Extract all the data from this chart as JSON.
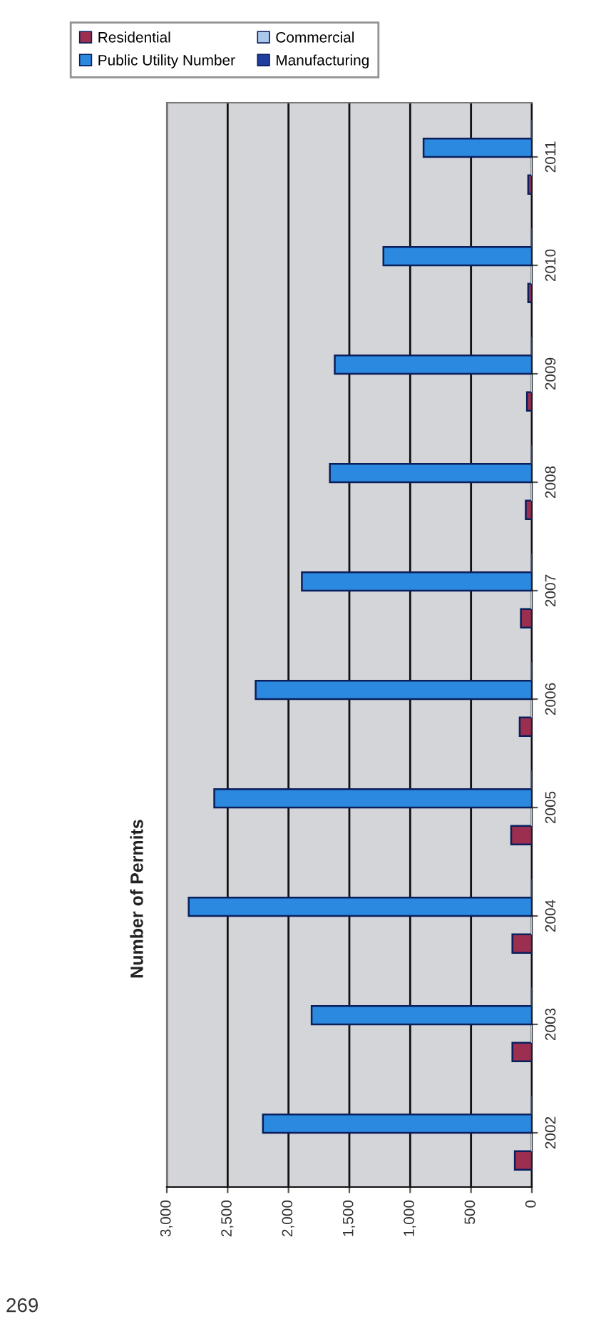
{
  "chart_data": {
    "type": "bar",
    "orientation": "horizontal",
    "title": "Number of Permits",
    "categories": [
      "2011",
      "2010",
      "2009",
      "2008",
      "2007",
      "2006",
      "2005",
      "2004",
      "2003",
      "2002"
    ],
    "series": [
      {
        "name": "Residential",
        "color": "#9c2f50",
        "values": [
          30,
          30,
          40,
          50,
          90,
          100,
          170,
          160,
          160,
          140
        ]
      },
      {
        "name": "Commercial",
        "color": "#a9c8ea",
        "values": [
          0,
          0,
          0,
          0,
          0,
          0,
          0,
          0,
          0,
          0
        ]
      },
      {
        "name": "Public Utility Number",
        "color": "#2b8ae0",
        "values": [
          890,
          1220,
          1620,
          1660,
          1890,
          2270,
          2610,
          2820,
          1810,
          2210
        ]
      },
      {
        "name": "Manufacturing",
        "color": "#1f3f9f",
        "values": [
          0,
          0,
          0,
          0,
          0,
          0,
          0,
          0,
          0,
          0
        ]
      }
    ],
    "xlim": [
      3000,
      0
    ],
    "xticks": [
      {
        "value": 3000,
        "label": "3,000"
      },
      {
        "value": 2500,
        "label": "2,500"
      },
      {
        "value": 2000,
        "label": "2,000"
      },
      {
        "value": 1500,
        "label": "1,500"
      },
      {
        "value": 1000,
        "label": "1,000"
      },
      {
        "value": 500,
        "label": "500"
      },
      0
    ],
    "grid": "x",
    "legend": "top left",
    "annotations": [
      "269"
    ]
  }
}
